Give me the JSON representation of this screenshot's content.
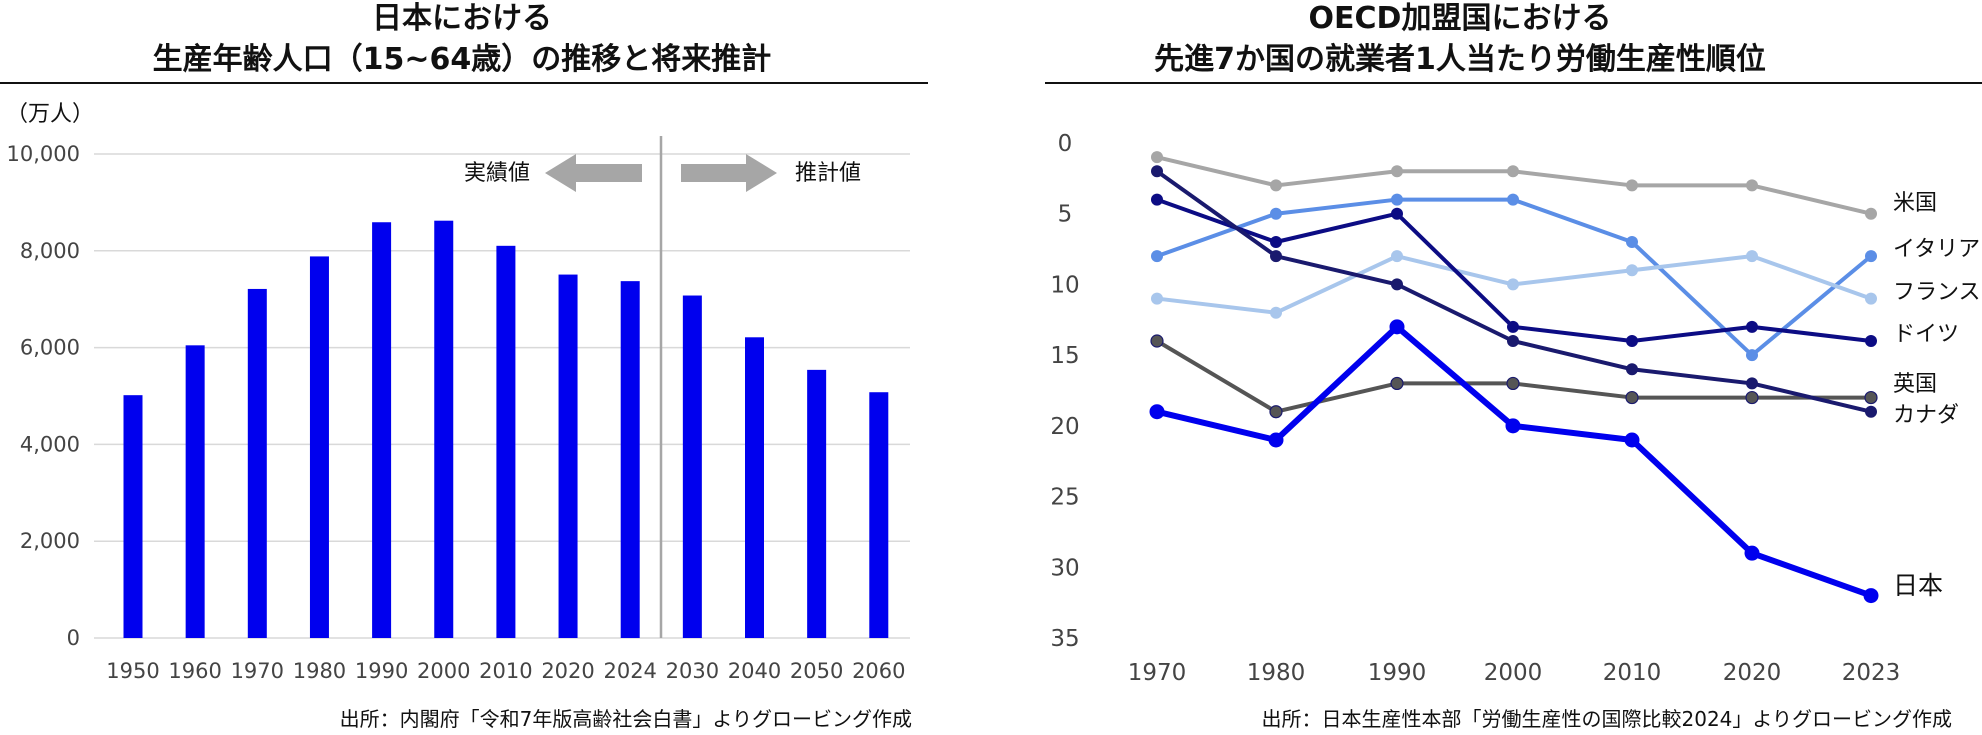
{
  "chart_data": [
    {
      "type": "bar",
      "title_line1": "日本における",
      "title_line2": "生産年齢人口（15~64歳）の推移と将来推計",
      "unit": "（万人）",
      "categories": [
        "1950",
        "1960",
        "1970",
        "1980",
        "1990",
        "2000",
        "2010",
        "2020",
        "2024",
        "2030",
        "2040",
        "2050",
        "2060"
      ],
      "values": [
        5017,
        6047,
        7212,
        7884,
        8590,
        8622,
        8103,
        7509,
        7373,
        7076,
        6213,
        5540,
        5078
      ],
      "ylim": [
        0,
        10000
      ],
      "yticks": [
        "0",
        "2,000",
        "4,000",
        "6,000",
        "8,000",
        "10,000"
      ],
      "ytick_values": [
        0,
        2000,
        4000,
        6000,
        8000,
        10000
      ],
      "bar_color": "#0000ee",
      "divider_after_index": 8,
      "annotation_left": "実績値",
      "annotation_right": "推計値",
      "arrow_color": "#a6a6a6",
      "grid": true,
      "source": "出所：内閣府「令和7年版高齢社会白書」よりグロービング作成"
    },
    {
      "type": "line",
      "title_line1": "OECD加盟国における",
      "title_line2": "先進7か国の就業者1人当たり労働生産性順位",
      "categories": [
        "1970",
        "1980",
        "1990",
        "2000",
        "2010",
        "2020",
        "2023"
      ],
      "ylim": [
        0,
        35
      ],
      "y_inverted": true,
      "yticks": [
        "0",
        "5",
        "10",
        "15",
        "20",
        "25",
        "30",
        "35"
      ],
      "ytick_values": [
        0,
        5,
        10,
        15,
        20,
        25,
        30,
        35
      ],
      "series": [
        {
          "name": "米国",
          "values": [
            1,
            3,
            2,
            2,
            3,
            3,
            5
          ],
          "color": "#a6a6a6",
          "label_color": "#111111"
        },
        {
          "name": "イタリア",
          "values": [
            8,
            5,
            4,
            4,
            7,
            15,
            8
          ],
          "color": "#5b8ee6",
          "label_color": "#111111"
        },
        {
          "name": "フランス",
          "values": [
            11,
            12,
            8,
            10,
            9,
            8,
            11
          ],
          "color": "#a8c6ec",
          "label_color": "#111111"
        },
        {
          "name": "ドイツ",
          "values": [
            4,
            7,
            5,
            13,
            14,
            13,
            14
          ],
          "color": "#0c0c84",
          "label_color": "#111111"
        },
        {
          "name": "英国",
          "values": [
            14,
            19,
            17,
            17,
            18,
            18,
            18
          ],
          "color": "#555555",
          "label_color": "#111111"
        },
        {
          "name": "カナダ",
          "values": [
            2,
            8,
            10,
            14,
            16,
            17,
            19
          ],
          "color": "#1a1a6e",
          "label_color": "#111111"
        },
        {
          "name": "日本",
          "values": [
            19,
            21,
            13,
            20,
            21,
            29,
            32
          ],
          "color": "#0000ee",
          "label_color": "#0000ee"
        }
      ],
      "source": "出所：日本生産性本部「労働生産性の国際比較2024」よりグロービング作成"
    }
  ]
}
